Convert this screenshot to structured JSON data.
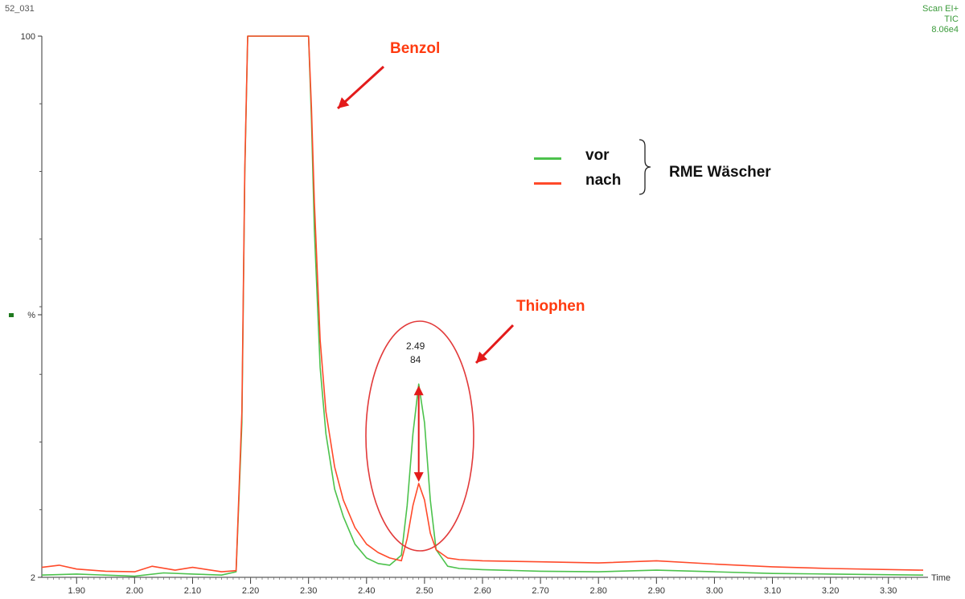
{
  "header": {
    "sample_id": "52_031",
    "scan_mode": "Scan EI+",
    "trace": "TIC",
    "intensity": "8.06e4"
  },
  "annotations": {
    "benzol": "Benzol",
    "thiophen": "Thiophen",
    "peak_rt": "2.49",
    "peak_mz": "84"
  },
  "legend": {
    "vor": "vor",
    "nach": "nach",
    "group_label": "RME Wäscher",
    "colors": {
      "vor": "#4cc24c",
      "nach": "#ff4a2a"
    }
  },
  "chart_data": {
    "type": "line",
    "xlabel": "Time",
    "ylabel": "%",
    "xlim": [
      1.84,
      3.36
    ],
    "ylim": [
      2,
      100
    ],
    "x_ticks": [
      "1.90",
      "2.00",
      "2.10",
      "2.20",
      "2.30",
      "2.40",
      "2.50",
      "2.60",
      "2.70",
      "2.80",
      "2.90",
      "3.00",
      "3.10",
      "3.20",
      "3.30"
    ],
    "y_tick_labels": [
      "100",
      "%",
      "2"
    ],
    "series": [
      {
        "name": "vor",
        "color": "#4cc24c",
        "points": [
          [
            1.84,
            2.4
          ],
          [
            1.9,
            2.6
          ],
          [
            2.0,
            2.2
          ],
          [
            2.05,
            2.8
          ],
          [
            2.1,
            2.6
          ],
          [
            2.15,
            2.4
          ],
          [
            2.175,
            3.0
          ],
          [
            2.185,
            30
          ],
          [
            2.19,
            75
          ],
          [
            2.195,
            100
          ],
          [
            2.23,
            100
          ],
          [
            2.3,
            100
          ],
          [
            2.305,
            85
          ],
          [
            2.31,
            65
          ],
          [
            2.32,
            40
          ],
          [
            2.33,
            28
          ],
          [
            2.345,
            18
          ],
          [
            2.36,
            13
          ],
          [
            2.38,
            8
          ],
          [
            2.4,
            5.5
          ],
          [
            2.42,
            4.5
          ],
          [
            2.44,
            4.2
          ],
          [
            2.46,
            6
          ],
          [
            2.47,
            15
          ],
          [
            2.48,
            28
          ],
          [
            2.49,
            37
          ],
          [
            2.5,
            30
          ],
          [
            2.51,
            16
          ],
          [
            2.52,
            7
          ],
          [
            2.54,
            4
          ],
          [
            2.56,
            3.6
          ],
          [
            2.6,
            3.4
          ],
          [
            2.7,
            3.1
          ],
          [
            2.8,
            3.0
          ],
          [
            2.9,
            3.3
          ],
          [
            3.0,
            3.0
          ],
          [
            3.1,
            2.7
          ],
          [
            3.2,
            2.6
          ],
          [
            3.36,
            2.4
          ]
        ]
      },
      {
        "name": "nach",
        "color": "#ff4a2a",
        "points": [
          [
            1.84,
            3.8
          ],
          [
            1.87,
            4.2
          ],
          [
            1.9,
            3.5
          ],
          [
            1.95,
            3.1
          ],
          [
            2.0,
            3.0
          ],
          [
            2.03,
            4.0
          ],
          [
            2.07,
            3.3
          ],
          [
            2.1,
            3.8
          ],
          [
            2.15,
            3.0
          ],
          [
            2.175,
            3.2
          ],
          [
            2.185,
            32
          ],
          [
            2.19,
            76
          ],
          [
            2.195,
            100
          ],
          [
            2.23,
            100
          ],
          [
            2.3,
            100
          ],
          [
            2.305,
            87
          ],
          [
            2.31,
            70
          ],
          [
            2.32,
            45
          ],
          [
            2.33,
            32
          ],
          [
            2.345,
            22
          ],
          [
            2.36,
            16
          ],
          [
            2.38,
            11
          ],
          [
            2.4,
            8
          ],
          [
            2.42,
            6.5
          ],
          [
            2.44,
            5.5
          ],
          [
            2.46,
            5
          ],
          [
            2.47,
            9
          ],
          [
            2.48,
            15
          ],
          [
            2.49,
            19
          ],
          [
            2.5,
            16
          ],
          [
            2.51,
            10
          ],
          [
            2.52,
            7
          ],
          [
            2.54,
            5.5
          ],
          [
            2.56,
            5.2
          ],
          [
            2.6,
            5.0
          ],
          [
            2.7,
            4.8
          ],
          [
            2.8,
            4.6
          ],
          [
            2.9,
            5.0
          ],
          [
            3.0,
            4.4
          ],
          [
            3.1,
            3.9
          ],
          [
            3.2,
            3.6
          ],
          [
            3.36,
            3.3
          ]
        ]
      }
    ]
  }
}
